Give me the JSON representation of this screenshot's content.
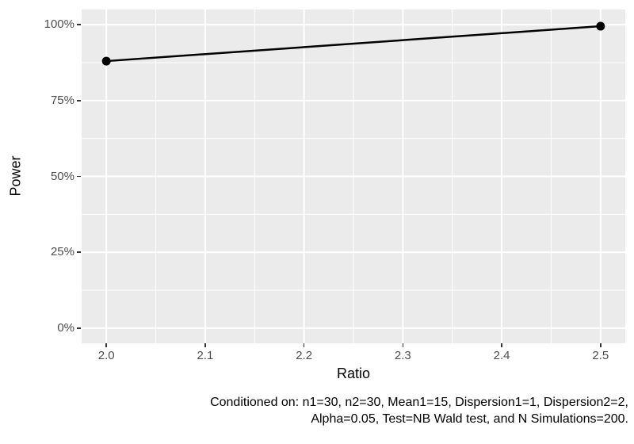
{
  "chart_data": {
    "type": "line",
    "x": [
      2.0,
      2.5
    ],
    "series": [
      {
        "name": "Power",
        "values": [
          0.88,
          0.995
        ]
      }
    ],
    "xlabel": "Ratio",
    "ylabel": "Power",
    "xlim": [
      2.0,
      2.5
    ],
    "ylim": [
      0,
      1
    ],
    "x_ticks": {
      "values": [
        2.0,
        2.1,
        2.2,
        2.3,
        2.4,
        2.5
      ],
      "labels": [
        "2.0",
        "2.1",
        "2.2",
        "2.3",
        "2.4",
        "2.5"
      ]
    },
    "y_ticks": {
      "values": [
        0,
        0.25,
        0.5,
        0.75,
        1
      ],
      "labels": [
        "0%",
        "25%",
        "50%",
        "75%",
        "100%"
      ]
    },
    "x_minor": [
      2.05,
      2.15,
      2.25,
      2.35,
      2.45
    ],
    "y_minor": [
      0.125,
      0.375,
      0.625,
      0.875
    ],
    "grid": true,
    "legend": "none",
    "caption_lines": {
      "line1": "Conditioned on: n1=30, n2=30, Mean1=15, Dispersion1=1, Dispersion2=2,",
      "line2": "Alpha=0.05, Test=NB Wald test, and N Simulations=200."
    },
    "style": {
      "panel_bg": "#EBEBEB",
      "grid_color": "#FFFFFF",
      "tick_label_color": "#4D4D4D",
      "tick_mark_color": "#333333",
      "line_color": "#000000",
      "point_color": "#000000",
      "background": "#FFFFFF"
    }
  }
}
